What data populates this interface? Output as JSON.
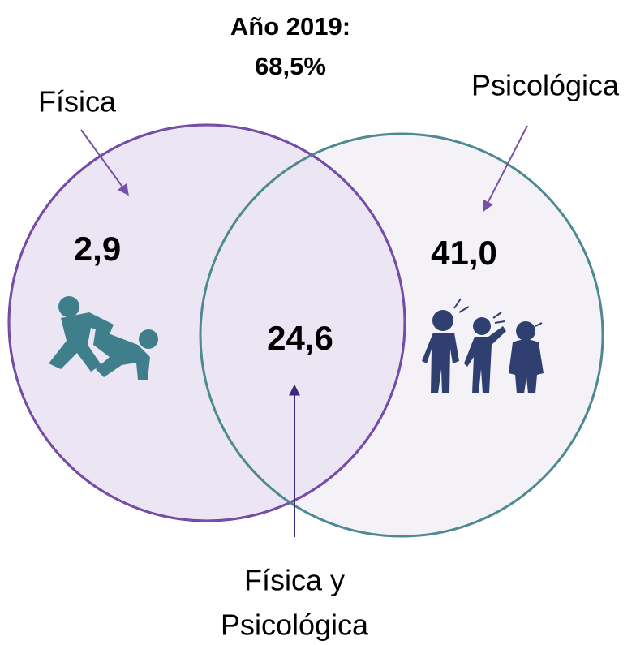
{
  "title": [
    "Año 2019:",
    "68,5%"
  ],
  "sets": [
    {
      "label": "Física",
      "value": "2,9"
    },
    {
      "label": "Psicológica",
      "value": "41,0"
    }
  ],
  "intersection": {
    "label": [
      "Física y",
      "Psicológica"
    ],
    "value": "24,6"
  }
}
